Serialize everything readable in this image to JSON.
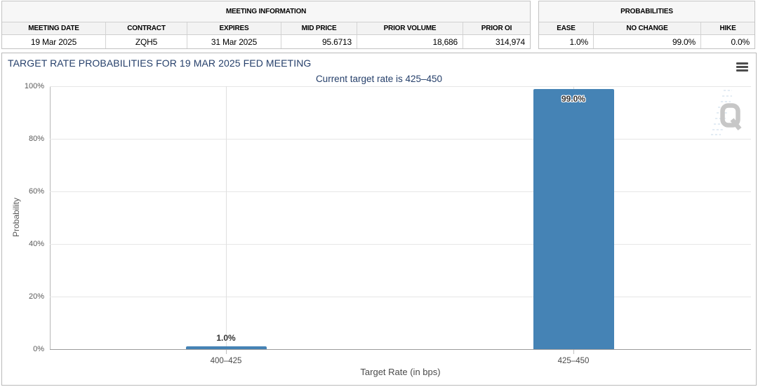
{
  "meeting_info_table": {
    "title": "MEETING INFORMATION",
    "columns": [
      {
        "header": "MEETING DATE",
        "value": "19 Mar 2025",
        "align": "center"
      },
      {
        "header": "CONTRACT",
        "value": "ZQH5",
        "align": "center"
      },
      {
        "header": "EXPIRES",
        "value": "31 Mar 2025",
        "align": "center"
      },
      {
        "header": "MID PRICE",
        "value": "95.6713",
        "align": "right"
      },
      {
        "header": "PRIOR VOLUME",
        "value": "18,686",
        "align": "right"
      },
      {
        "header": "PRIOR OI",
        "value": "314,974",
        "align": "right"
      }
    ]
  },
  "probabilities_table": {
    "title": "PROBABILITIES",
    "columns": [
      {
        "header": "EASE",
        "value": "1.0%",
        "align": "right"
      },
      {
        "header": "NO CHANGE",
        "value": "99.0%",
        "align": "right"
      },
      {
        "header": "HIKE",
        "value": "0.0%",
        "align": "right"
      }
    ]
  },
  "chart_panel": {
    "title": "TARGET RATE PROBABILITIES FOR 19 MAR 2025 FED MEETING",
    "subtitle": "Current target rate is 425–450",
    "menu_icon": "hamburger-icon",
    "watermark_letter": "Q",
    "colors": {
      "bar": "#4583b5",
      "title_text": "#26406b",
      "watermark": "#c5c5c5"
    }
  },
  "chart_data": {
    "type": "bar",
    "title": "TARGET RATE PROBABILITIES FOR 19 MAR 2025 FED MEETING",
    "subtitle": "Current target rate is 425–450",
    "categories": [
      "400–425",
      "425–450"
    ],
    "values": [
      1.0,
      99.0
    ],
    "value_labels": [
      "1.0%",
      "99.0%"
    ],
    "xlabel": "Target Rate (in bps)",
    "ylabel": "Probability",
    "ylim": [
      0,
      100
    ],
    "ytick_labels": [
      "0%",
      "20%",
      "40%",
      "60%",
      "80%",
      "100%"
    ],
    "grid": true,
    "legend": false,
    "bar_color": "#4583b5"
  }
}
